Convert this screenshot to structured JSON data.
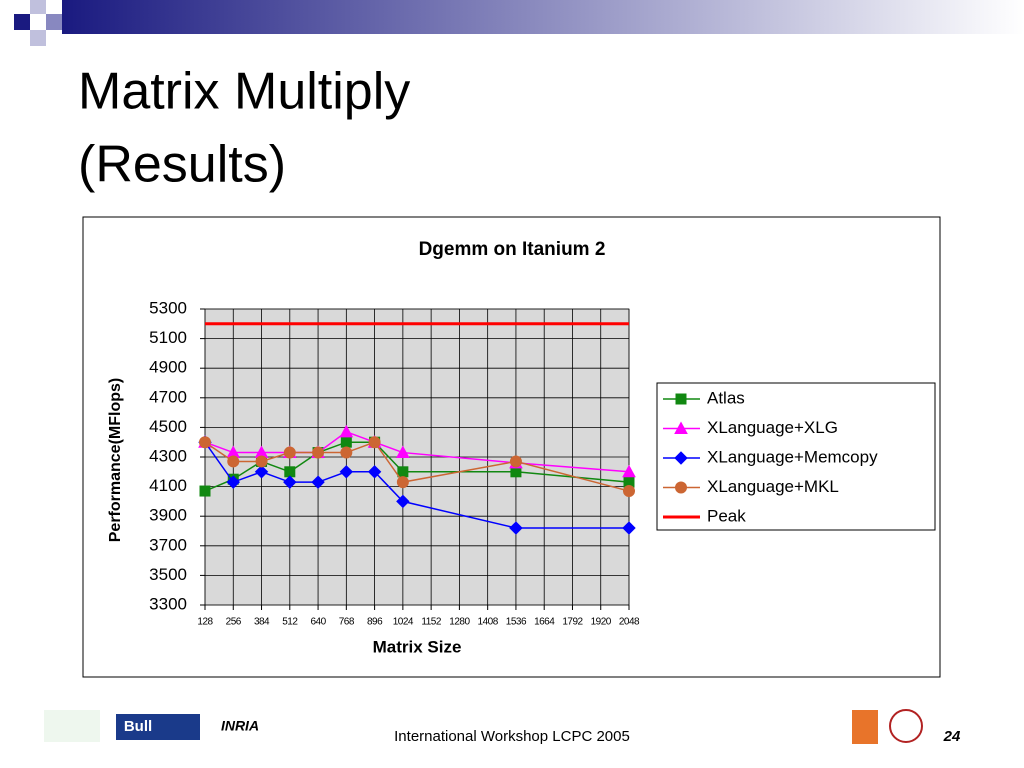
{
  "slide": {
    "title_lines": [
      "Matrix Multiply",
      "(Results)"
    ]
  },
  "chart_data": {
    "type": "line",
    "title": "Dgemm on Itanium 2",
    "xlabel": "Matrix Size",
    "ylabel": "Performance(MFlops)",
    "xlim": [
      128,
      2048
    ],
    "xticks": [
      128,
      256,
      384,
      512,
      640,
      768,
      896,
      1024,
      1152,
      1280,
      1408,
      1536,
      1664,
      1792,
      1920,
      2048
    ],
    "ylim": [
      3300,
      5300
    ],
    "yticks": [
      3300,
      3500,
      3700,
      3900,
      4100,
      4300,
      4500,
      4700,
      4900,
      5100,
      5300
    ],
    "grid": true,
    "legend": "right",
    "series": [
      {
        "name": "Atlas",
        "color": "#118811",
        "marker": "square",
        "x": [
          128,
          256,
          384,
          512,
          640,
          768,
          896,
          1024,
          1536,
          2048
        ],
        "values": [
          4070,
          4150,
          4270,
          4200,
          4330,
          4400,
          4400,
          4200,
          4200,
          4130
        ]
      },
      {
        "name": "XLanguage+XLG",
        "color": "#ff00ff",
        "marker": "triangle",
        "x": [
          128,
          256,
          384,
          512,
          640,
          768,
          896,
          1024,
          1536,
          2048
        ],
        "values": [
          4400,
          4330,
          4330,
          4330,
          4330,
          4470,
          4400,
          4330,
          4260,
          4200
        ]
      },
      {
        "name": "XLanguage+Memcopy",
        "color": "#0000ff",
        "marker": "diamond",
        "x": [
          128,
          256,
          384,
          512,
          640,
          768,
          896,
          1024,
          1536,
          2048
        ],
        "values": [
          4400,
          4130,
          4200,
          4130,
          4130,
          4200,
          4200,
          4000,
          3820,
          3820
        ]
      },
      {
        "name": "XLanguage+MKL",
        "color": "#cc6633",
        "marker": "circle",
        "x": [
          128,
          256,
          384,
          512,
          640,
          768,
          896,
          1024,
          1536,
          2048
        ],
        "values": [
          4400,
          4270,
          4270,
          4330,
          4330,
          4330,
          4400,
          4130,
          4270,
          4070
        ]
      },
      {
        "name": "Peak",
        "color": "#ff0000",
        "marker": "none",
        "x": [
          128,
          2048
        ],
        "values": [
          5200,
          5200
        ]
      }
    ]
  },
  "footer": {
    "logos": [
      "Bull",
      "INRIA"
    ],
    "text": "International Workshop LCPC 2005",
    "page": "24"
  }
}
